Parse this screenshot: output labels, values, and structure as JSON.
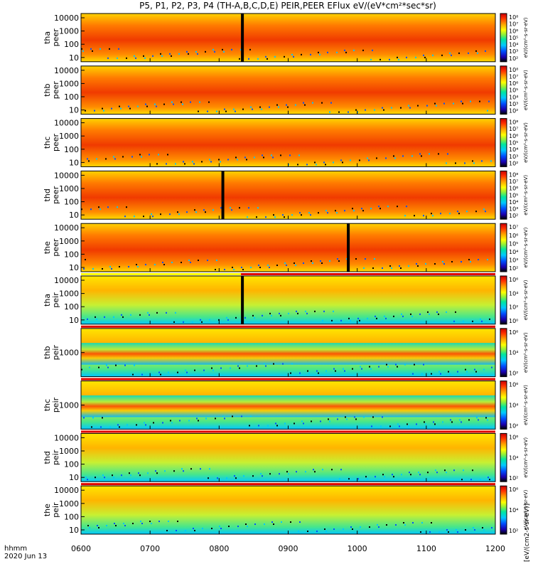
{
  "chart_data": {
    "type": "heatmap",
    "title": "P5, P1, P2, P3, P4 (TH-A,B,C,D,E) PEIR,PEER EFlux eV/(eV*cm²*sec*sr)",
    "x_axis": {
      "tick_labels": [
        "0600",
        "0700",
        "0800",
        "0900",
        "1000",
        "1100",
        "1200"
      ],
      "range_hhmm": [
        "0600",
        "1200"
      ],
      "row_label": "hhmm",
      "date_label": "2020 Jun 13"
    },
    "colorbar_label": "eV/(cm²-s-sr-eV)",
    "colorbar_bottom_label": "[eV/(cm2-s-sr-eV)]",
    "colors": {
      "colorbar": [
        "#000000",
        "#1a00b0",
        "#0050ff",
        "#00c8ff",
        "#00e6a0",
        "#8cf03c",
        "#ffff00",
        "#ffa000",
        "#ff3000",
        "#c80000"
      ],
      "sat_bar_red": "#e00000",
      "sat_bar_yellow": "#ffff00"
    },
    "panels": [
      {
        "probe": "tha",
        "quantity": "peer",
        "y_ticks": [
          "10000",
          "1000",
          "100",
          "10"
        ],
        "cbar_ticks": [
          "10⁸",
          "10⁷",
          "10⁶",
          "10⁵",
          "10⁴",
          "10³",
          "10²"
        ],
        "gap_at": "0819"
      },
      {
        "probe": "thb",
        "quantity": "peer",
        "y_ticks": [
          "10000",
          "1000",
          "100",
          "10"
        ],
        "cbar_ticks": [
          "10⁸",
          "10⁷",
          "10⁶",
          "10⁵",
          "10⁴",
          "10³",
          "10²"
        ]
      },
      {
        "probe": "thc",
        "quantity": "peer",
        "y_ticks": [
          "10000",
          "1000",
          "100",
          "10"
        ],
        "cbar_ticks": [
          "10⁸",
          "10⁷",
          "10⁶",
          "10⁵",
          "10⁴",
          "10³",
          "10²"
        ]
      },
      {
        "probe": "thd",
        "quantity": "peer",
        "y_ticks": [
          "10000",
          "1000",
          "100",
          "10"
        ],
        "cbar_ticks": [
          "10⁸",
          "10⁷",
          "10⁶",
          "10⁵",
          "10⁴",
          "10³",
          "10²"
        ],
        "gap_at": "0802"
      },
      {
        "probe": "the",
        "quantity": "peer",
        "y_ticks": [
          "10000",
          "1000",
          "100",
          "10"
        ],
        "cbar_ticks": [
          "10⁷",
          "10⁶",
          "10⁵",
          "10⁴",
          "10³",
          "10²"
        ],
        "gap_at": "0951"
      },
      {
        "probe": "tha",
        "quantity": "peir",
        "y_ticks": [
          "10000",
          "1000",
          "100",
          "10"
        ],
        "cbar_ticks": [
          "10⁶",
          "10⁴",
          "10²",
          "10⁰"
        ],
        "gap_at": "0819"
      },
      {
        "probe": "thb",
        "quantity": "peir",
        "y_ticks": [
          "1000"
        ],
        "cbar_ticks": [
          "10⁶",
          "10⁴",
          "10²"
        ]
      },
      {
        "probe": "thc",
        "quantity": "peir",
        "y_ticks": [
          "1000"
        ],
        "cbar_ticks": [
          "10⁶",
          "10⁴",
          "10²"
        ]
      },
      {
        "probe": "thd",
        "quantity": "peir",
        "y_ticks": [
          "10000",
          "1000",
          "100",
          "10"
        ],
        "cbar_ticks": [
          "10⁶",
          "10⁴",
          "10²"
        ]
      },
      {
        "probe": "the",
        "quantity": "peir",
        "y_ticks": [
          "10000",
          "1000",
          "100",
          "10"
        ],
        "cbar_ticks": [
          "10⁶",
          "10⁴",
          "10²"
        ]
      }
    ]
  }
}
